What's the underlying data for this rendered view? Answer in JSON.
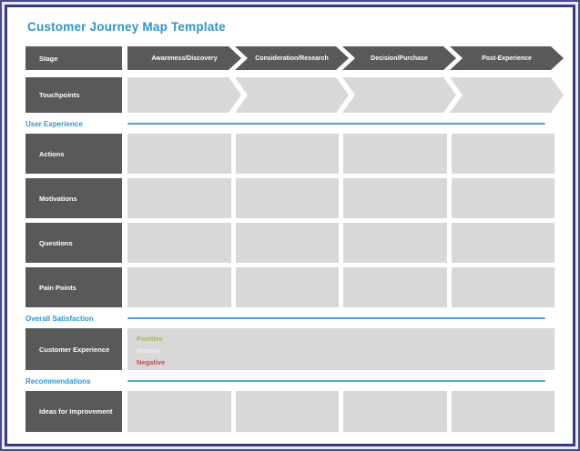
{
  "page": {
    "title": "Customer Journey Map Template"
  },
  "colors": {
    "title_blue": "#2e96ce",
    "section_line_blue": "#4aa3d8",
    "label_dark_gray": "#595959",
    "cell_light_gray": "#d8d8d8",
    "frame_navy": "#3a3a80",
    "positive_green": "#9cbb5c",
    "neutral_light": "#efefef",
    "negative_red": "#c0504d"
  },
  "stage_row": {
    "label": "Stage",
    "stages": [
      {
        "label": "Awareness/Discovery"
      },
      {
        "label": "Consideration/Research"
      },
      {
        "label": "Decision/Purchase"
      },
      {
        "label": "Post-Experience"
      }
    ]
  },
  "touchpoints_row": {
    "label": "Touchpoints",
    "cells": [
      "",
      "",
      "",
      ""
    ]
  },
  "sections": {
    "user_experience": {
      "label": "User Experience"
    },
    "overall_satisfaction": {
      "label": "Overall Satisfaction"
    },
    "recommendations": {
      "label": "Recommendations"
    }
  },
  "experience_rows": [
    {
      "label": "Actions",
      "cells": [
        "",
        "",
        "",
        ""
      ]
    },
    {
      "label": "Motivations",
      "cells": [
        "",
        "",
        "",
        ""
      ]
    },
    {
      "label": "Questions",
      "cells": [
        "",
        "",
        "",
        ""
      ]
    },
    {
      "label": "Pain Points",
      "cells": [
        "",
        "",
        "",
        ""
      ]
    }
  ],
  "satisfaction_row": {
    "label": "Customer Experience",
    "levels": [
      {
        "label": "Positive",
        "color": "#9cbb5c"
      },
      {
        "label": "Neutral",
        "color": "#efefef"
      },
      {
        "label": "Negative",
        "color": "#c0504d"
      }
    ]
  },
  "recommendations_row": {
    "label": "Ideas for Improvement",
    "cells": [
      "",
      "",
      "",
      ""
    ]
  }
}
